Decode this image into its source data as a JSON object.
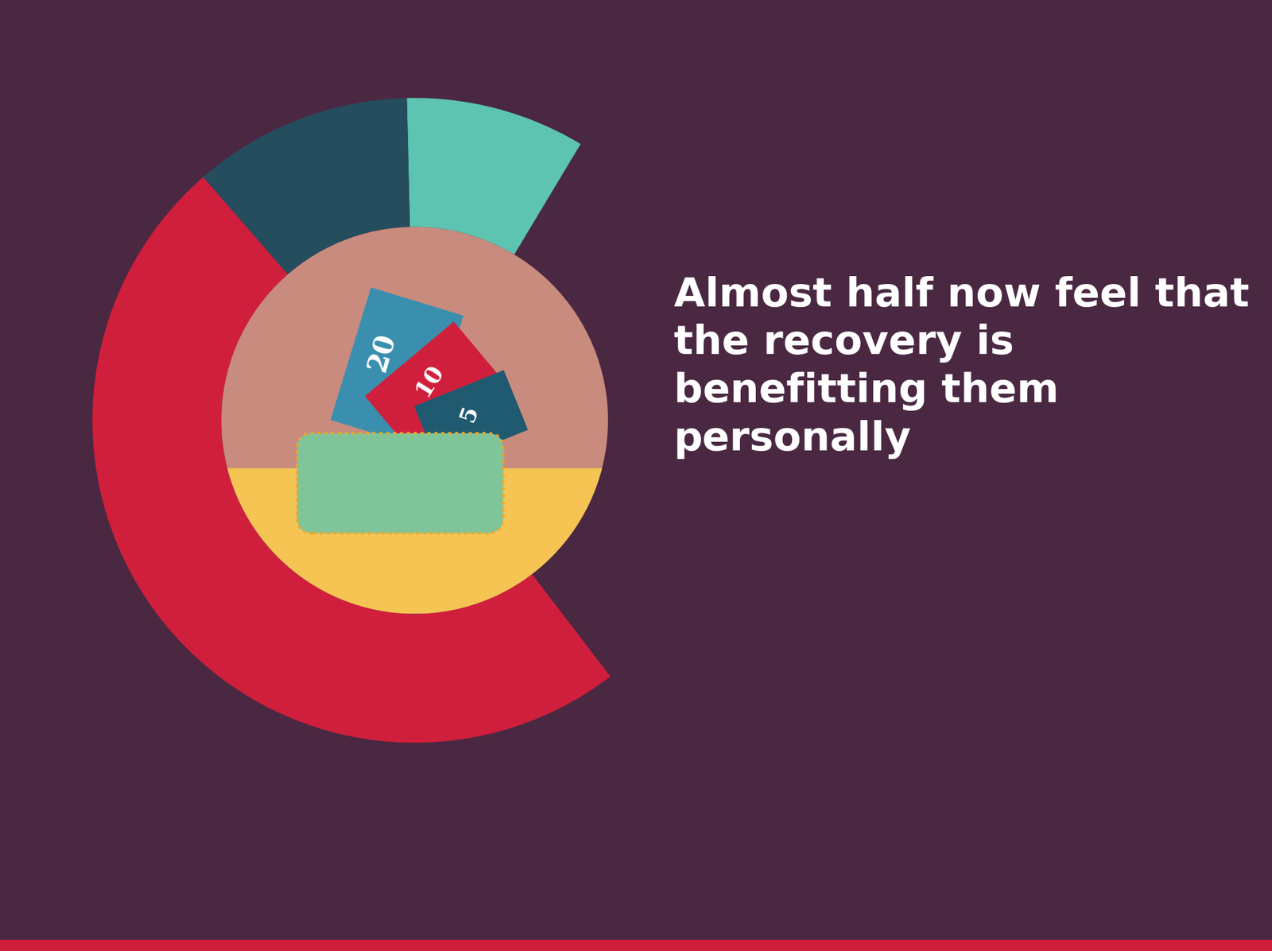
{
  "chart_data": {
    "type": "donut",
    "title": "Almost half now feel that the recovery is benefitting them personally",
    "values": [
      49,
      31,
      9,
      11
    ],
    "colors": [
      "#d01f3c",
      "#4a2842",
      "#5cc4b0",
      "#244d5e"
    ],
    "illustration": {
      "banknotes": [
        "20",
        "10",
        "5"
      ]
    }
  }
}
